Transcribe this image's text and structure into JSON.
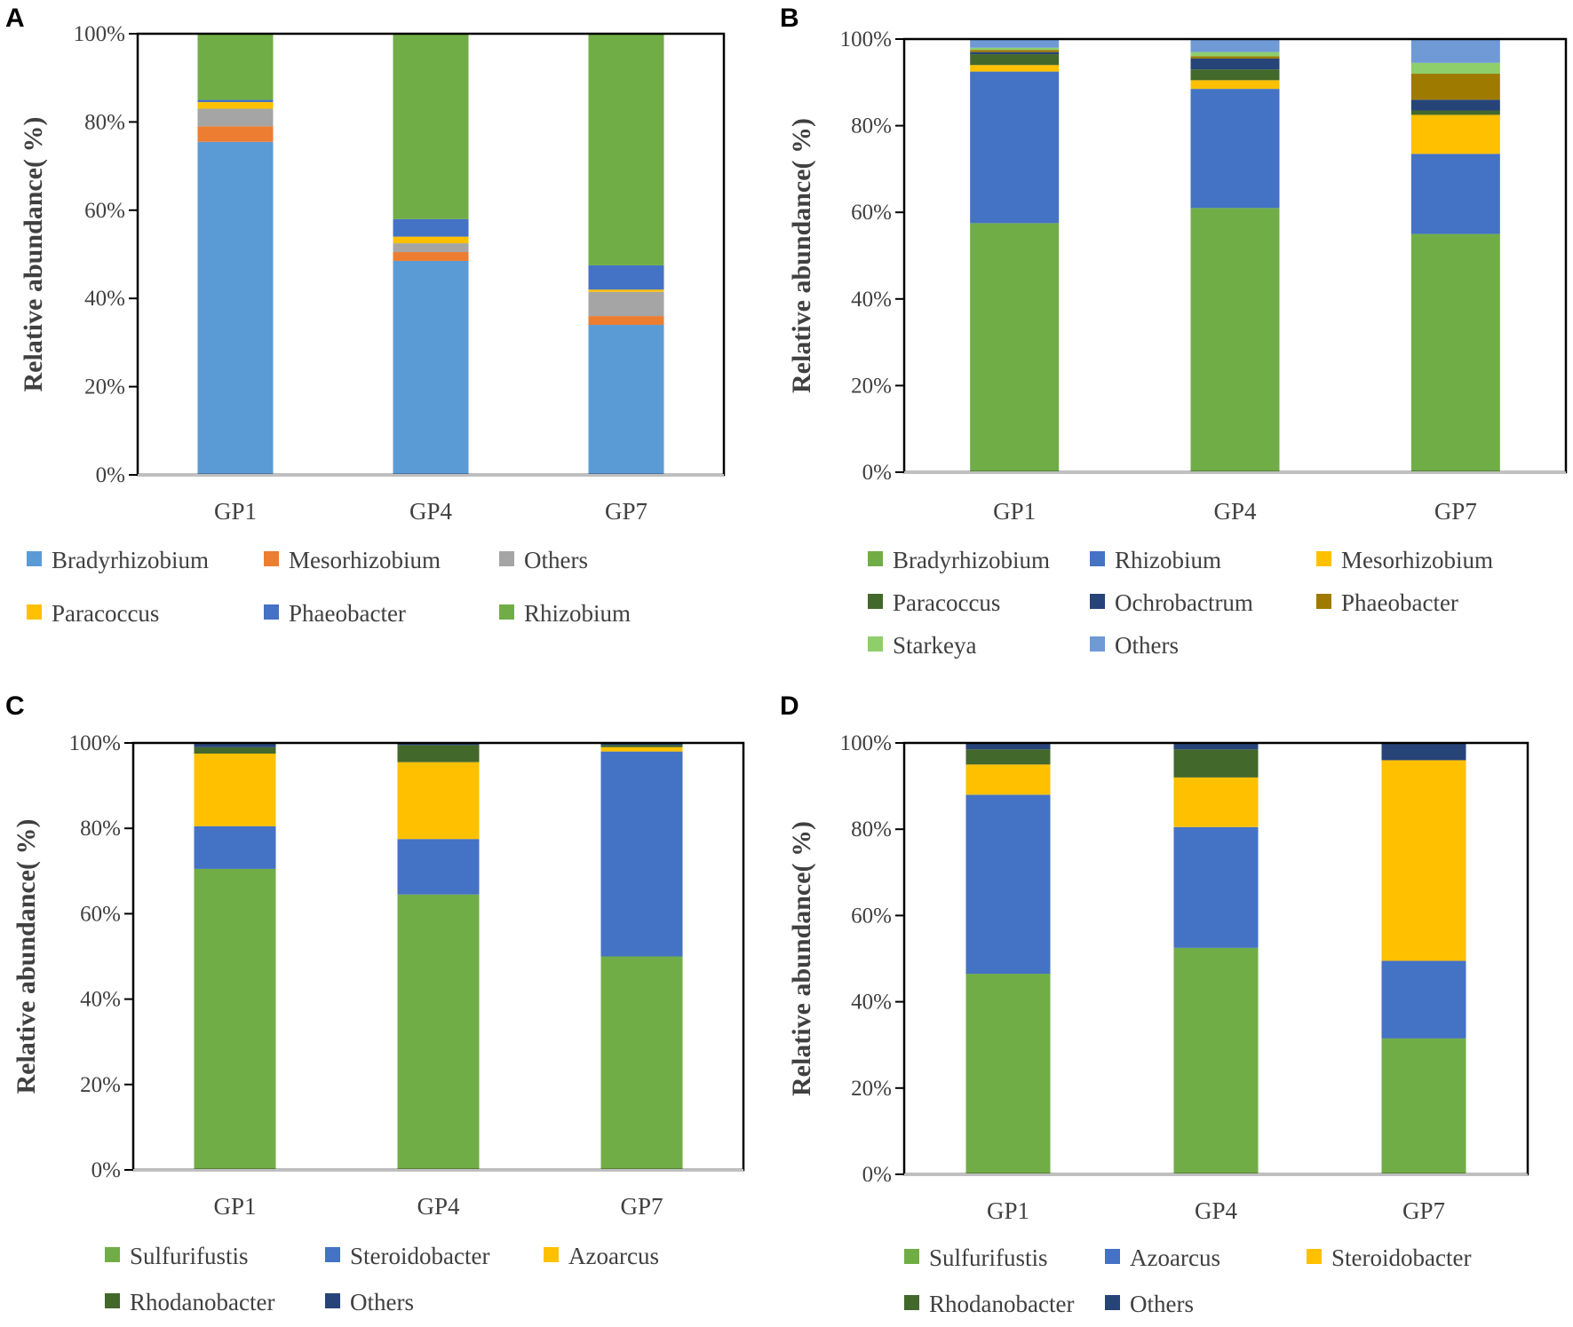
{
  "colors": {
    "light_blue": "#5b9bd5",
    "orange": "#ed7d31",
    "gray": "#a5a5a5",
    "yellow": "#ffc000",
    "blue": "#4472c4",
    "green": "#70ad47",
    "dark_green": "#43682b",
    "navy": "#264478",
    "brown": "#9e7a00",
    "light_green": "#8ecf6b",
    "light_steel_blue": "#6f9ad6"
  },
  "chart_data": [
    {
      "panel": "A",
      "type": "stacked_bar",
      "ylabel": "Relative abundance( %)",
      "yticks": [
        "0%",
        "20%",
        "40%",
        "60%",
        "80%",
        "100%"
      ],
      "ylim": [
        0,
        100
      ],
      "categories": [
        "GP1",
        "GP4",
        "GP7"
      ],
      "series": [
        {
          "name": "Bradyrhizobium",
          "color": "#5b9bd5",
          "values": [
            75.5,
            48.5,
            34.0
          ]
        },
        {
          "name": "Mesorhizobium",
          "color": "#ed7d31",
          "values": [
            3.5,
            2.0,
            2.0
          ]
        },
        {
          "name": "Others",
          "color": "#a5a5a5",
          "values": [
            4.0,
            2.0,
            5.5
          ]
        },
        {
          "name": "Paracoccus",
          "color": "#ffc000",
          "values": [
            1.5,
            1.5,
            0.5
          ]
        },
        {
          "name": "Phaeobacter",
          "color": "#4472c4",
          "values": [
            0.5,
            4.0,
            5.5
          ]
        },
        {
          "name": "Rhizobium",
          "color": "#70ad47",
          "values": [
            15.0,
            42.0,
            52.5
          ]
        }
      ],
      "legend_order": [
        "Bradyrhizobium",
        "Mesorhizobium",
        "Others",
        "Paracoccus",
        "Phaeobacter",
        "Rhizobium"
      ]
    },
    {
      "panel": "B",
      "type": "stacked_bar",
      "ylabel": "Relative abundance( %)",
      "yticks": [
        "0%",
        "20%",
        "40%",
        "60%",
        "80%",
        "100%"
      ],
      "ylim": [
        0,
        100
      ],
      "categories": [
        "GP1",
        "GP4",
        "GP7"
      ],
      "series": [
        {
          "name": "Bradyrhizobium",
          "color": "#70ad47",
          "values": [
            57.5,
            61.0,
            55.0
          ]
        },
        {
          "name": "Rhizobium",
          "color": "#4472c4",
          "values": [
            35.0,
            27.5,
            18.5
          ]
        },
        {
          "name": "Mesorhizobium",
          "color": "#ffc000",
          "values": [
            1.5,
            2.0,
            9.0
          ]
        },
        {
          "name": "Paracoccus",
          "color": "#43682b",
          "values": [
            2.5,
            2.5,
            1.0
          ]
        },
        {
          "name": "Ochrobactrum",
          "color": "#264478",
          "values": [
            0.5,
            2.5,
            2.5
          ]
        },
        {
          "name": "Phaeobacter",
          "color": "#9e7a00",
          "values": [
            0.5,
            0.5,
            6.0
          ]
        },
        {
          "name": "Starkeya",
          "color": "#8ecf6b",
          "values": [
            0.5,
            1.0,
            2.5
          ]
        },
        {
          "name": "Others",
          "color": "#6f9ad6",
          "values": [
            2.0,
            3.0,
            5.5
          ]
        }
      ],
      "legend_order": [
        "Bradyrhizobium",
        "Rhizobium",
        "Mesorhizobium",
        "Paracoccus",
        "Ochrobactrum",
        "Phaeobacter",
        "Starkeya",
        "Others"
      ]
    },
    {
      "panel": "C",
      "type": "stacked_bar",
      "ylabel": "Relative abundance( %)",
      "yticks": [
        "0%",
        "20%",
        "40%",
        "60%",
        "80%",
        "100%"
      ],
      "ylim": [
        0,
        100
      ],
      "categories": [
        "GP1",
        "GP4",
        "GP7"
      ],
      "series": [
        {
          "name": "Sulfurifustis",
          "color": "#70ad47",
          "values": [
            70.5,
            64.5,
            50.0
          ]
        },
        {
          "name": "Steroidobacter",
          "color": "#4472c4",
          "values": [
            10.0,
            13.0,
            48.0
          ]
        },
        {
          "name": "Azoarcus",
          "color": "#ffc000",
          "values": [
            17.0,
            18.0,
            1.0
          ]
        },
        {
          "name": "Rhodanobacter",
          "color": "#43682b",
          "values": [
            1.5,
            4.0,
            0.5
          ]
        },
        {
          "name": "Others",
          "color": "#264478",
          "values": [
            1.0,
            0.5,
            0.5
          ]
        }
      ],
      "legend_order": [
        "Sulfurifustis",
        "Steroidobacter",
        "Azoarcus",
        "Rhodanobacter",
        "Others"
      ]
    },
    {
      "panel": "D",
      "type": "stacked_bar",
      "ylabel": "Relative abundance( %)",
      "yticks": [
        "0%",
        "20%",
        "40%",
        "60%",
        "80%",
        "100%"
      ],
      "ylim": [
        0,
        100
      ],
      "categories": [
        "GP1",
        "GP4",
        "GP7"
      ],
      "series": [
        {
          "name": "Sulfurifustis",
          "color": "#70ad47",
          "values": [
            46.5,
            52.5,
            31.5
          ]
        },
        {
          "name": "Azoarcus",
          "color": "#4472c4",
          "values": [
            41.5,
            28.0,
            18.0
          ]
        },
        {
          "name": "Steroidobacter",
          "color": "#ffc000",
          "values": [
            7.0,
            11.5,
            46.5
          ]
        },
        {
          "name": "Rhodanobacter",
          "color": "#43682b",
          "values": [
            3.5,
            6.5,
            0.0
          ]
        },
        {
          "name": "Others",
          "color": "#264478",
          "values": [
            1.5,
            1.5,
            4.0
          ]
        }
      ],
      "legend_order": [
        "Sulfurifustis",
        "Azoarcus",
        "Steroidobacter",
        "Rhodanobacter",
        "Others"
      ]
    }
  ]
}
